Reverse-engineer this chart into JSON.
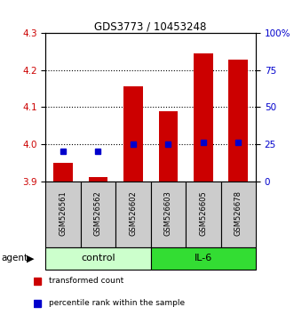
{
  "title": "GDS3773 / 10453248",
  "samples": [
    "GSM526561",
    "GSM526562",
    "GSM526602",
    "GSM526603",
    "GSM526605",
    "GSM526678"
  ],
  "red_values": [
    3.95,
    3.912,
    4.155,
    4.09,
    4.245,
    4.228
  ],
  "blue_percentiles": [
    20,
    20,
    25,
    25,
    26,
    26
  ],
  "ylim_left": [
    3.9,
    4.3
  ],
  "ylim_right": [
    0,
    100
  ],
  "yticks_left": [
    3.9,
    4.0,
    4.1,
    4.2,
    4.3
  ],
  "yticks_right": [
    0,
    25,
    50,
    75,
    100
  ],
  "ytick_labels_right": [
    "0",
    "25",
    "50",
    "75",
    "100%"
  ],
  "bar_bottom": 3.9,
  "bar_color": "#cc0000",
  "blue_color": "#0000cc",
  "control_color": "#ccffcc",
  "il6_color": "#33dd33",
  "group_bg_color": "#cccccc",
  "agent_label": "agent",
  "legend_red_label": "transformed count",
  "legend_blue_label": "percentile rank within the sample",
  "bar_width": 0.55
}
